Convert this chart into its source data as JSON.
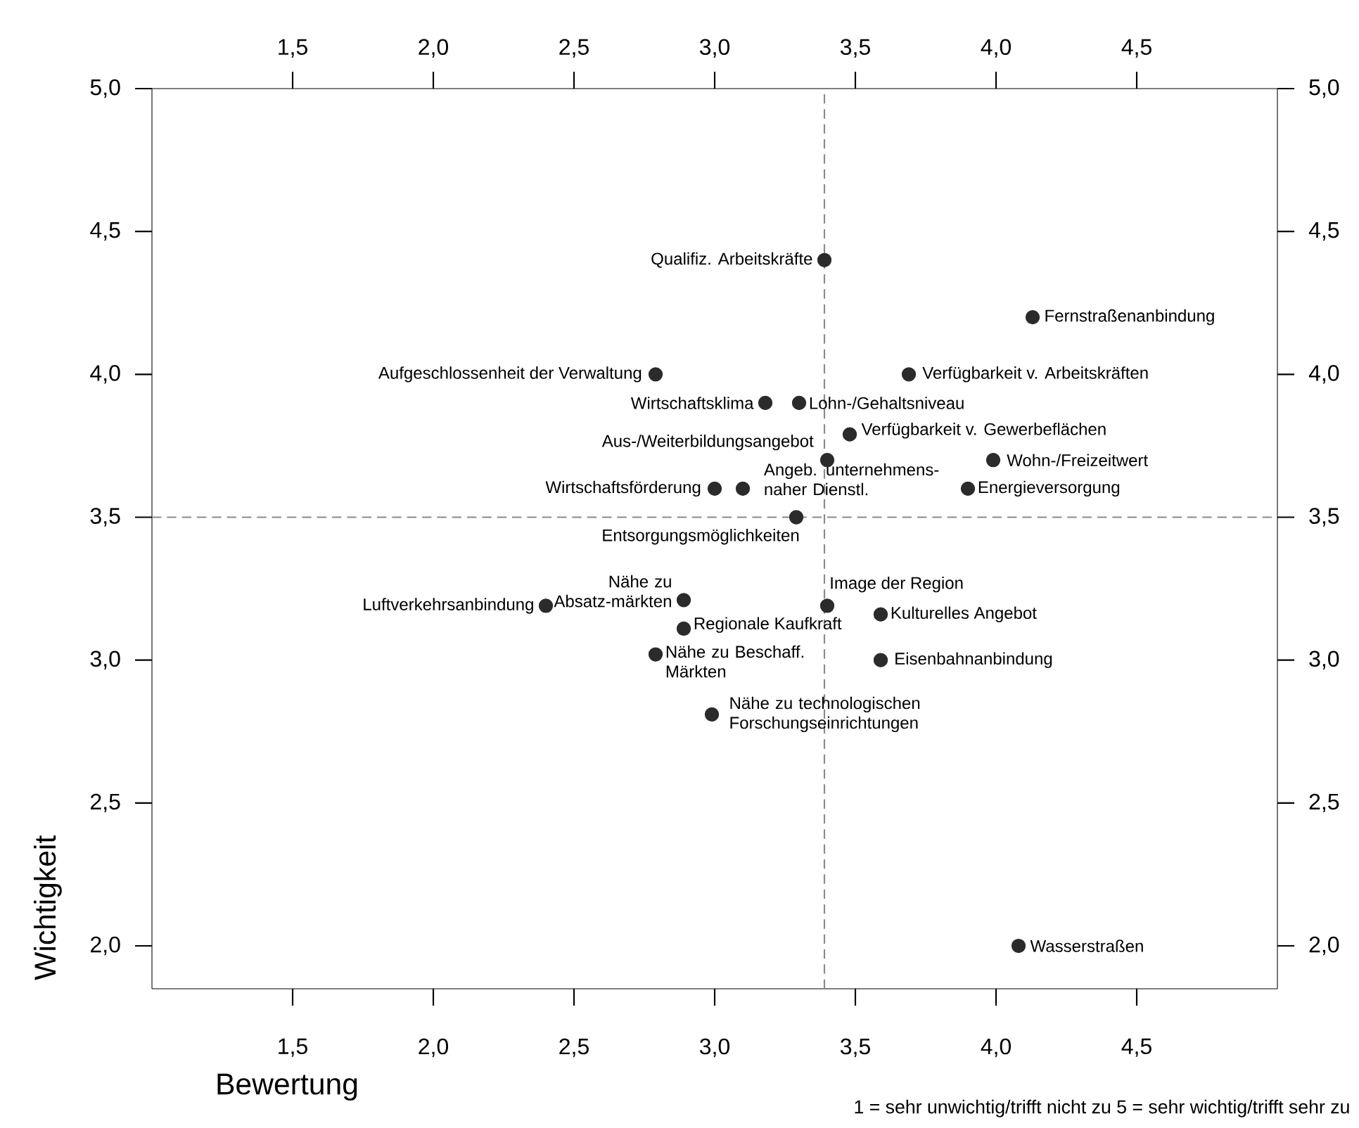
{
  "chart_data": {
    "type": "scatter",
    "xlabel": "Bewertung",
    "ylabel": "Wichtigkeit",
    "marker": "circle",
    "color": "#2b2b2b",
    "x": [
      3.39,
      4.13,
      3.69,
      2.79,
      3.18,
      3.3,
      3.48,
      3.4,
      3.99,
      3.9,
      3.0,
      3.1,
      3.29,
      2.89,
      2.89,
      2.79,
      2.99,
      3.4,
      3.59,
      3.59,
      2.4,
      4.08
    ],
    "values": [
      4.4,
      4.2,
      4.0,
      4.0,
      3.9,
      3.9,
      3.79,
      3.7,
      3.7,
      3.6,
      3.6,
      3.6,
      3.5,
      3.21,
      3.11,
      3.02,
      2.81,
      3.19,
      3.16,
      3.0,
      3.19,
      2.0
    ],
    "xlim": [
      1.0,
      5.0
    ],
    "ylim": [
      1.85,
      5.0
    ],
    "x2lim": [
      1.0,
      5.0
    ],
    "y2lim": [
      1.85,
      5.0
    ],
    "xticks": [
      {
        "value": 1.5,
        "label": "1,5"
      },
      {
        "value": 2.0,
        "label": "2,0"
      },
      {
        "value": 2.5,
        "label": "2,5"
      },
      {
        "value": 3.0,
        "label": "3,0"
      },
      {
        "value": 3.5,
        "label": "3,5"
      },
      {
        "value": 4.0,
        "label": "4,0"
      },
      {
        "value": 4.5,
        "label": "4,5"
      }
    ],
    "x2ticks": [
      {
        "value": 1.5,
        "label": "1,5"
      },
      {
        "value": 2.0,
        "label": "2,0"
      },
      {
        "value": 2.5,
        "label": "2,5"
      },
      {
        "value": 3.0,
        "label": "3,0"
      },
      {
        "value": 3.5,
        "label": "3,5"
      },
      {
        "value": 4.0,
        "label": "4,0"
      },
      {
        "value": 4.5,
        "label": "4,5"
      }
    ],
    "yticks": [
      {
        "value": 2.0,
        "label": "2,0"
      },
      {
        "value": 2.5,
        "label": "2,5"
      },
      {
        "value": 3.0,
        "label": "3,0"
      },
      {
        "value": 3.5,
        "label": "3,5"
      },
      {
        "value": 4.0,
        "label": "4,0"
      },
      {
        "value": 4.5,
        "label": "4,5"
      },
      {
        "value": 5.0,
        "label": "5,0"
      }
    ],
    "y2ticks": [
      {
        "value": 2.0,
        "label": "2,0"
      },
      {
        "value": 2.5,
        "label": "2,5"
      },
      {
        "value": 3.0,
        "label": "3,0"
      },
      {
        "value": 3.5,
        "label": "3,5"
      },
      {
        "value": 4.0,
        "label": "4,0"
      },
      {
        "value": 4.5,
        "label": "4,5"
      },
      {
        "value": 5.0,
        "label": "5,0"
      }
    ],
    "ref_lines": [
      {
        "axis": "x",
        "value": 3.39,
        "color": "#8a8a8a",
        "line_style": "dashed"
      },
      {
        "axis": "y",
        "value": 3.5,
        "color": "#8a8a8a",
        "line_style": "dashed"
      }
    ],
    "annotations": [
      {
        "text": "Qualifiz. Arbeitskräfte",
        "x": 3.39,
        "y": 4.4
      },
      {
        "text": "Fernstraßenanbindung",
        "x": 4.13,
        "y": 4.2
      },
      {
        "text": "Verfügbarkeit v. Arbeitskräften",
        "x": 3.69,
        "y": 4.0
      },
      {
        "text": "Aufgeschlossenheit der Verwaltung",
        "x": 2.79,
        "y": 4.0
      },
      {
        "text": "Wirtschaftsklima",
        "x": 3.18,
        "y": 3.9
      },
      {
        "text": "Lohn-/Gehaltsniveau",
        "x": 3.3,
        "y": 3.9
      },
      {
        "text": "Verfügbarkeit v. Gewerbeflächen",
        "x": 3.48,
        "y": 3.79
      },
      {
        "text": "Aus-/Weiterbildungsangebot",
        "x": 3.4,
        "y": 3.7
      },
      {
        "text": "Wohn-/Freizeitwert",
        "x": 3.99,
        "y": 3.7
      },
      {
        "text": "Energieversorgung",
        "x": 3.9,
        "y": 3.6
      },
      {
        "text": "Wirtschaftsförderung",
        "x": 3.0,
        "y": 3.6
      },
      {
        "text": "Angeb. unternehmens-naher Dienstl.",
        "x": 3.1,
        "y": 3.6
      },
      {
        "text": "Entsorgungsmöglichkeiten",
        "x": 3.29,
        "y": 3.5
      },
      {
        "text": "Nähe zu Absatz-märkten",
        "x": 2.89,
        "y": 3.21
      },
      {
        "text": "Regionale Kaufkraft",
        "x": 2.89,
        "y": 3.11
      },
      {
        "text": "Nähe zu Beschaff. Märkten",
        "x": 2.79,
        "y": 3.02
      },
      {
        "text": "Nähe zu technologischen Forschungseinrichtungen",
        "x": 2.99,
        "y": 2.81
      },
      {
        "text": "Image der Region",
        "x": 3.4,
        "y": 3.19
      },
      {
        "text": "Kulturelles Angebot",
        "x": 3.59,
        "y": 3.16
      },
      {
        "text": "Eisenbahnanbindung",
        "x": 3.59,
        "y": 3.0
      },
      {
        "text": "Luftverkehrsanbindung",
        "x": 2.4,
        "y": 3.19
      },
      {
        "text": "Wasserstraßen",
        "x": 4.08,
        "y": 2.0
      },
      "1 = sehr unwichtig/trifft nicht zu  5 = sehr wichtig/trifft sehr zu"
    ]
  }
}
